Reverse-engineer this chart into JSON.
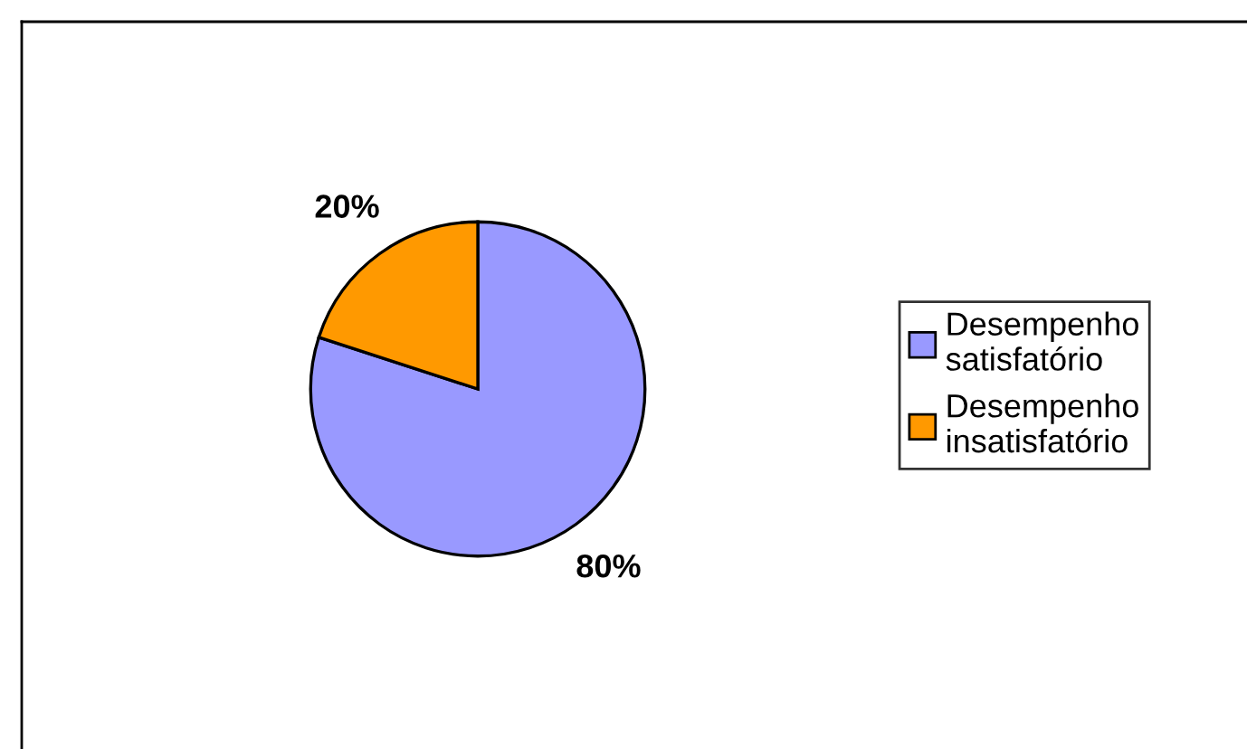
{
  "chart_data": {
    "type": "pie",
    "categories": [
      "Desempenho satisfatório",
      "Desempenho insatisfatório"
    ],
    "values": [
      80,
      20
    ],
    "colors": [
      "#9999ff",
      "#ff9900"
    ],
    "value_labels": [
      "80%",
      "20%"
    ],
    "legend": "right"
  }
}
